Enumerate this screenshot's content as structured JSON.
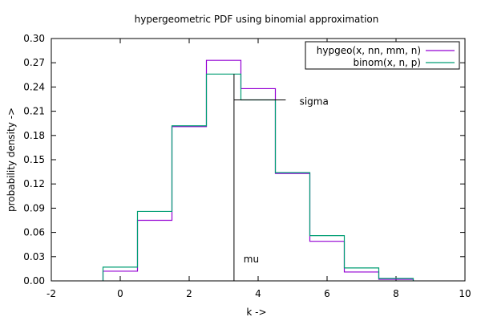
{
  "chart_data": {
    "type": "line",
    "title": "hypergeometric PDF using binomial approximation",
    "xlabel": "k ->",
    "ylabel": "probability density ->",
    "xlim": [
      -2,
      10
    ],
    "ylim": [
      0,
      0.3
    ],
    "x_ticks": [
      -2,
      0,
      2,
      4,
      6,
      8,
      10
    ],
    "x_tick_labels": [
      "-2",
      "0",
      "2",
      "4",
      "6",
      "8",
      "10"
    ],
    "y_ticks": [
      0,
      0.03,
      0.06,
      0.09,
      0.12,
      0.15,
      0.18,
      0.21,
      0.24,
      0.27,
      0.3
    ],
    "y_tick_labels": [
      "0.00",
      "0.03",
      "0.06",
      "0.09",
      "0.12",
      "0.15",
      "0.18",
      "0.21",
      "0.24",
      "0.27",
      "0.30"
    ],
    "grid": false,
    "legend_position": "top-right",
    "step_width": 1,
    "x": [
      0,
      1,
      2,
      3,
      4,
      5,
      6,
      7,
      8
    ],
    "series": [
      {
        "name": "hypgeo(x, nn, mm, n)",
        "color": "#9400d3",
        "values": [
          0.012,
          0.075,
          0.191,
          0.273,
          0.238,
          0.133,
          0.049,
          0.011,
          0.002
        ]
      },
      {
        "name": "binom(x, n, p)",
        "color": "#009e73",
        "values": [
          0.017,
          0.086,
          0.192,
          0.256,
          0.224,
          0.134,
          0.056,
          0.016,
          0.003
        ]
      }
    ],
    "annotations": {
      "mu": {
        "label": "mu",
        "x": 3.3,
        "label_x": 3.8,
        "label_y": 0.027
      },
      "sigma": {
        "label": "sigma",
        "y": 0.224,
        "x_start": 3.3,
        "x_end": 4.8,
        "label_x": 5.2,
        "label_y": 0.222
      }
    }
  }
}
